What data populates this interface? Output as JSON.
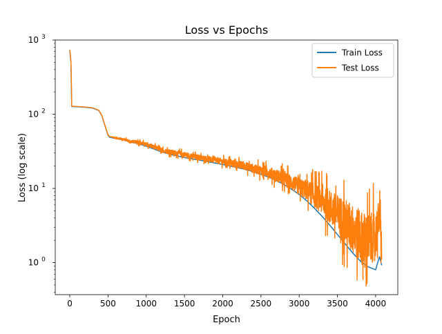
{
  "chart_data": {
    "type": "line",
    "title": "Loss vs Epochs",
    "xlabel": "Epoch",
    "ylabel": "Loss (log scale)",
    "yscale": "log",
    "xlim": [
      -190,
      4290
    ],
    "ylim": [
      0.37,
      1000
    ],
    "xticks": [
      0,
      500,
      1000,
      1500,
      2000,
      2500,
      3000,
      3500,
      4000
    ],
    "xtick_labels": [
      "0",
      "500",
      "1000",
      "1500",
      "2000",
      "2500",
      "3000",
      "3500",
      "4000"
    ],
    "yticks": [
      1,
      10,
      100,
      1000
    ],
    "ytick_labels": [
      "10^0",
      "10^1",
      "10^2",
      "10^3"
    ],
    "grid": false,
    "legend_position": "top-right",
    "series": [
      {
        "name": "Train Loss",
        "color": "#1f77b4",
        "x": [
          0,
          15,
          25,
          100,
          200,
          300,
          380,
          420,
          450,
          480,
          500,
          520,
          600,
          700,
          800,
          900,
          1000,
          1100,
          1200,
          1300,
          1400,
          1500,
          1600,
          1700,
          1800,
          1900,
          2000,
          2100,
          2200,
          2300,
          2400,
          2500,
          2600,
          2700,
          2800,
          2900,
          3000,
          3100,
          3200,
          3300,
          3400,
          3500,
          3600,
          3700,
          3800,
          3900,
          4000,
          4050,
          4080
        ],
        "y": [
          720,
          500,
          127,
          126,
          124,
          121,
          112,
          95,
          75,
          60,
          52,
          49,
          47,
          45,
          42,
          40,
          37,
          34,
          31,
          29,
          27.5,
          26,
          25,
          24,
          23,
          22,
          21,
          20,
          19,
          18,
          16.8,
          15.5,
          14.2,
          12.8,
          11.3,
          9.8,
          8.3,
          6.8,
          5.4,
          4.2,
          3.2,
          2.4,
          1.8,
          1.35,
          1.05,
          0.88,
          0.8,
          1.2,
          0.92
        ]
      },
      {
        "name": "Test Loss",
        "color": "#ff7f0e",
        "x": [
          0,
          15,
          25,
          100,
          200,
          300,
          380,
          420,
          450,
          480,
          500,
          520,
          600,
          700,
          800,
          900,
          1000,
          1100,
          1200,
          1300,
          1400,
          1500,
          1600,
          1700,
          1800,
          1900,
          2000,
          2100,
          2200,
          2300,
          2400,
          2500,
          2600,
          2700,
          2800,
          2900,
          3000,
          3100,
          3200,
          3300,
          3400,
          3500,
          3600,
          3700,
          3800,
          3900,
          4000,
          4050,
          4080
        ],
        "y": [
          740,
          520,
          128,
          127,
          125,
          122,
          113,
          96,
          76,
          61,
          53,
          50,
          48,
          46,
          43,
          42,
          39,
          36,
          33,
          31,
          30,
          28.5,
          27,
          26,
          25,
          24,
          23,
          22,
          21,
          20,
          18.5,
          17.5,
          16.5,
          15,
          13.5,
          12,
          10.5,
          9.5,
          8,
          6.8,
          5.6,
          4.4,
          3.5,
          2.8,
          2.2,
          2.0,
          2.3,
          4.2,
          1.5
        ],
        "noise_band": [
          0,
          0,
          0,
          0,
          0,
          0,
          0,
          0,
          0,
          0,
          0,
          0,
          0.03,
          0.03,
          0.04,
          0.05,
          0.05,
          0.06,
          0.06,
          0.07,
          0.07,
          0.08,
          0.08,
          0.08,
          0.08,
          0.09,
          0.09,
          0.1,
          0.11,
          0.12,
          0.13,
          0.14,
          0.16,
          0.18,
          0.2,
          0.22,
          0.25,
          0.3,
          0.35,
          0.4,
          0.5,
          0.6,
          0.7,
          0.75,
          0.8,
          0.8,
          0.7,
          0.5,
          0.4
        ]
      }
    ]
  }
}
